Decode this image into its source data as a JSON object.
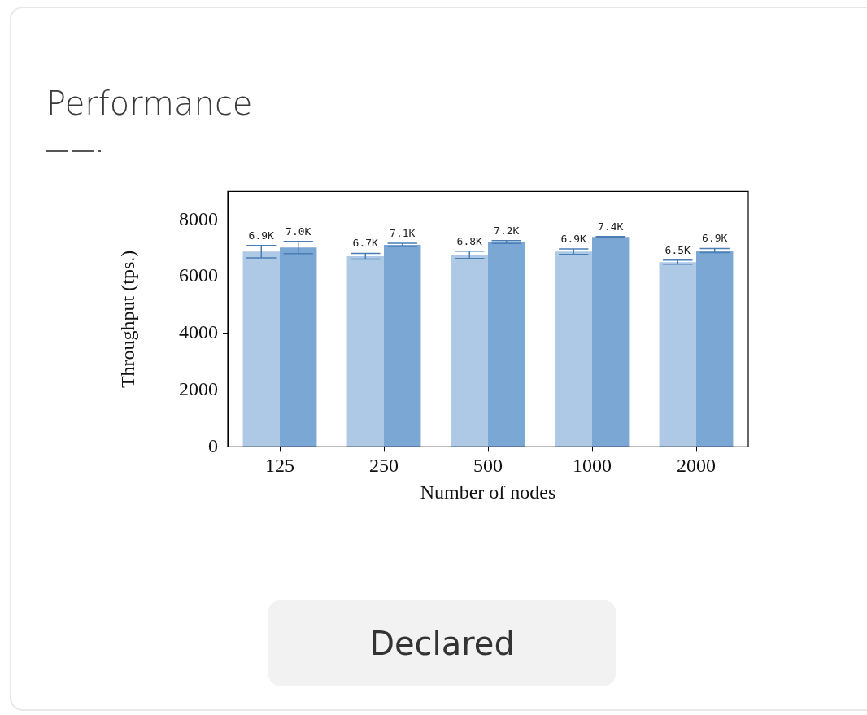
{
  "chart_data": {
    "type": "bar",
    "title": "Performance",
    "xlabel": "Number of nodes",
    "ylabel": "Throughput (tps.)",
    "categories": [
      "125",
      "250",
      "500",
      "1000",
      "2000"
    ],
    "series": [
      {
        "color": "#adc9e6",
        "values": [
          6880,
          6720,
          6770,
          6880,
          6510
        ],
        "errors": [
          220,
          100,
          130,
          100,
          70
        ],
        "value_labels": [
          "6.9K",
          "6.7K",
          "6.8K",
          "6.9K",
          "6.5K"
        ]
      },
      {
        "color": "#7ba7d4",
        "values": [
          7030,
          7120,
          7220,
          7400,
          6920
        ],
        "errors": [
          215,
          60,
          50,
          15,
          70
        ],
        "value_labels": [
          "7.0K",
          "7.1K",
          "7.2K",
          "7.4K",
          "6.9K"
        ]
      }
    ],
    "ylim": [
      0,
      9000
    ],
    "yticks": [
      0,
      2000,
      4000,
      6000,
      8000
    ],
    "grid": false,
    "legend": false,
    "annotations": [
      "Declared"
    ]
  }
}
